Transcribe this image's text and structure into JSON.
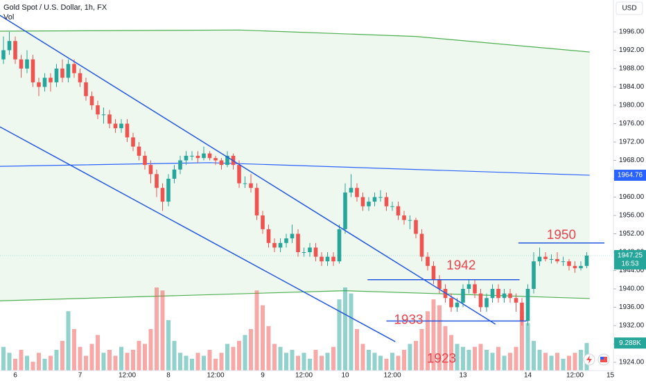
{
  "chart_data": {
    "type": "candlestick",
    "title": "Gold Spot / U.S. Dollar, 1h, FX",
    "volume_title": "Vol",
    "currency": "USD",
    "countdown": "16:53",
    "volume_tag": "9.288K",
    "colors": {
      "up": "#26a69a",
      "down": "#ef5350",
      "band": "#4caf50",
      "mid": "#2962ff",
      "trend": "#2157e0",
      "note": "#e8444d"
    },
    "categories": [
      null,
      null,
      "6",
      null,
      null,
      null,
      null,
      null,
      null,
      null,
      null,
      null,
      null,
      "7",
      null,
      null,
      null,
      null,
      null,
      null,
      null,
      "12:00",
      null,
      null,
      null,
      null,
      null,
      null,
      "8",
      null,
      null,
      null,
      null,
      null,
      null,
      null,
      "12:00",
      null,
      null,
      null,
      null,
      null,
      null,
      null,
      "9",
      null,
      null,
      null,
      null,
      null,
      null,
      "12:00",
      null,
      null,
      null,
      null,
      null,
      null,
      "10",
      null,
      null,
      null,
      null,
      null,
      null,
      null,
      "12:00",
      null,
      null,
      null,
      null,
      null,
      null,
      null,
      null,
      null,
      null,
      null,
      "13",
      null,
      null,
      null,
      null,
      null,
      null,
      null,
      null,
      null,
      null,
      "14",
      null,
      null,
      null,
      null,
      null,
      null,
      null,
      "12:00",
      null,
      null,
      null,
      null,
      null,
      "15"
    ],
    "ohlc": [
      [
        1990,
        1995,
        1989,
        1992
      ],
      [
        1992,
        1996,
        1991,
        1994
      ],
      [
        1994,
        1995,
        1989,
        1990
      ],
      [
        1990,
        1991,
        1986,
        1988
      ],
      [
        1988,
        1992,
        1987,
        1990
      ],
      [
        1990,
        1991,
        1984,
        1985
      ],
      [
        1985,
        1986,
        1982,
        1984
      ],
      [
        1984,
        1987,
        1983,
        1986
      ],
      [
        1986,
        1987,
        1983,
        1985
      ],
      [
        1985,
        1989,
        1984,
        1988
      ],
      [
        1988,
        1990,
        1985,
        1986
      ],
      [
        1986,
        1990,
        1985,
        1989
      ],
      [
        1989,
        1990,
        1986,
        1987
      ],
      [
        1987,
        1988,
        1984,
        1985
      ],
      [
        1985,
        1986,
        1981,
        1982
      ],
      [
        1982,
        1983,
        1979,
        1980
      ],
      [
        1980,
        1981,
        1977,
        1978
      ],
      [
        1978,
        1979.5,
        1976,
        1978
      ],
      [
        1978,
        1979,
        1975,
        1976
      ],
      [
        1976,
        1977,
        1974,
        1975
      ],
      [
        1975,
        1977,
        1974,
        1976
      ],
      [
        1976,
        1977,
        1972,
        1973
      ],
      [
        1973,
        1974,
        1970,
        1971
      ],
      [
        1971,
        1972,
        1968,
        1969
      ],
      [
        1969,
        1970,
        1966,
        1967
      ],
      [
        1967,
        1968,
        1963,
        1965
      ],
      [
        1965,
        1966,
        1960,
        1962
      ],
      [
        1962,
        1963,
        1957,
        1959
      ],
      [
        1959,
        1965,
        1958,
        1964
      ],
      [
        1964,
        1967,
        1963,
        1966
      ],
      [
        1966,
        1969,
        1965,
        1968
      ],
      [
        1968,
        1970,
        1967,
        1969
      ],
      [
        1969,
        1970,
        1968,
        1969
      ],
      [
        1969,
        1970,
        1967.5,
        1968.5
      ],
      [
        1968.5,
        1971,
        1968,
        1969.5
      ],
      [
        1969.5,
        1970,
        1968,
        1968.5
      ],
      [
        1968.5,
        1969,
        1967,
        1968
      ],
      [
        1968,
        1968.5,
        1966,
        1967
      ],
      [
        1967,
        1970,
        1966.5,
        1969
      ],
      [
        1969,
        1969.5,
        1966,
        1967
      ],
      [
        1967,
        1968,
        1962,
        1963
      ],
      [
        1963,
        1964.5,
        1962,
        1963
      ],
      [
        1963,
        1965,
        1961,
        1962
      ],
      [
        1962,
        1963,
        1955,
        1956
      ],
      [
        1956,
        1957,
        1952,
        1953
      ],
      [
        1953,
        1954,
        1949,
        1950
      ],
      [
        1950,
        1951,
        1948,
        1949
      ],
      [
        1949,
        1951,
        1948,
        1950
      ],
      [
        1950,
        1952,
        1949,
        1951
      ],
      [
        1951,
        1954,
        1950,
        1952
      ],
      [
        1952,
        1953,
        1947,
        1948
      ],
      [
        1948,
        1949,
        1947,
        1948
      ],
      [
        1948,
        1950,
        1947,
        1949
      ],
      [
        1949,
        1950,
        1946,
        1947
      ],
      [
        1947,
        1948,
        1945,
        1946
      ],
      [
        1946,
        1948,
        1945,
        1947
      ],
      [
        1947,
        1948,
        1945,
        1946
      ],
      [
        1946,
        1954,
        1945.5,
        1953
      ],
      [
        1953,
        1963,
        1952,
        1961
      ],
      [
        1961,
        1965,
        1960,
        1962
      ],
      [
        1962,
        1963,
        1959,
        1960
      ],
      [
        1960,
        1961,
        1957,
        1958
      ],
      [
        1958,
        1960,
        1957,
        1959
      ],
      [
        1959,
        1961,
        1958,
        1960
      ],
      [
        1960,
        1961.5,
        1959,
        1960
      ],
      [
        1960,
        1961,
        1957,
        1958
      ],
      [
        1958,
        1959,
        1957,
        1958
      ],
      [
        1958,
        1959,
        1955,
        1956
      ],
      [
        1956,
        1957,
        1954,
        1955
      ],
      [
        1955,
        1956,
        1953,
        1955
      ],
      [
        1955,
        1955.5,
        1951,
        1952
      ],
      [
        1952,
        1953,
        1946,
        1947
      ],
      [
        1947,
        1948,
        1944,
        1945
      ],
      [
        1945,
        1946,
        1941,
        1942
      ],
      [
        1942,
        1943,
        1939,
        1940
      ],
      [
        1940,
        1941,
        1937,
        1938
      ],
      [
        1938,
        1939,
        1935,
        1936
      ],
      [
        1936,
        1938,
        1935,
        1937
      ],
      [
        1937,
        1941,
        1936,
        1940
      ],
      [
        1940,
        1942,
        1939,
        1941
      ],
      [
        1941,
        1942,
        1938,
        1939
      ],
      [
        1939,
        1940,
        1935,
        1936
      ],
      [
        1936,
        1939,
        1935,
        1938
      ],
      [
        1938,
        1941,
        1937,
        1940
      ],
      [
        1940,
        1941,
        1937,
        1938
      ],
      [
        1938,
        1940,
        1937,
        1939
      ],
      [
        1939,
        1940,
        1937,
        1938
      ],
      [
        1938,
        1939,
        1935,
        1937
      ],
      [
        1937,
        1938,
        1932,
        1933
      ],
      [
        1933,
        1941,
        1932,
        1940
      ],
      [
        1940,
        1948,
        1939,
        1946
      ],
      [
        1946,
        1949,
        1945,
        1947
      ],
      [
        1947,
        1948,
        1946,
        1946.5
      ],
      [
        1946.5,
        1947.5,
        1945.5,
        1946.5
      ],
      [
        1946.5,
        1948,
        1945.5,
        1946
      ],
      [
        1946,
        1947,
        1945,
        1946
      ],
      [
        1946,
        1946.5,
        1944,
        1945
      ],
      [
        1945,
        1946,
        1943.5,
        1944.5
      ],
      [
        1944.5,
        1946,
        1944,
        1945
      ],
      [
        1945,
        1948,
        1944.5,
        1947.25
      ],
      null,
      null,
      null,
      null
    ],
    "volumes": [
      8,
      6,
      4,
      7,
      5,
      3,
      6,
      4,
      5,
      7,
      10,
      20,
      14,
      8,
      5,
      9,
      12,
      6,
      7,
      5,
      8,
      6,
      7,
      10,
      9,
      14,
      28,
      27,
      17,
      10,
      6,
      5,
      4,
      6,
      5,
      7,
      4,
      6,
      9,
      8,
      10,
      12,
      14,
      27,
      22,
      15,
      9,
      8,
      6,
      7,
      5,
      6,
      4,
      7,
      5,
      6,
      8,
      24,
      28,
      26,
      14,
      9,
      7,
      6,
      5,
      4,
      6,
      5,
      7,
      9,
      10,
      14,
      20,
      24,
      22,
      15,
      12,
      9,
      8,
      7,
      8,
      9,
      7,
      6,
      8,
      5,
      6,
      8,
      20,
      16,
      10,
      7,
      6,
      5,
      6,
      4,
      5,
      6,
      7,
      9.288,
      null,
      null,
      null,
      null
    ],
    "vlim": [
      0,
      28
    ],
    "ylim": [
      1922.19,
      2002.94
    ],
    "yticks": [
      {
        "value": 1924,
        "label": "1924.00"
      },
      {
        "value": 1928,
        "label": "1928.00"
      },
      {
        "value": 1932,
        "label": "1932.00"
      },
      {
        "value": 1936,
        "label": "1936.00"
      },
      {
        "value": 1940,
        "label": "1940.00"
      },
      {
        "value": 1944,
        "label": "1944.00"
      },
      {
        "value": 1948,
        "label": "1948.00"
      },
      {
        "value": 1952,
        "label": "1952.00"
      },
      {
        "value": 1956,
        "label": "1956.00"
      },
      {
        "value": 1960,
        "label": "1960.00"
      },
      {
        "value": 1964,
        "label": "1964.00"
      },
      {
        "value": 1968,
        "label": "1968.00"
      },
      {
        "value": 1972,
        "label": "1972.00"
      },
      {
        "value": 1976,
        "label": "1976.00"
      },
      {
        "value": 1980,
        "label": "1980.00"
      },
      {
        "value": 1984,
        "label": "1984.00"
      },
      {
        "value": 1988,
        "label": "1988.00"
      },
      {
        "value": 1992,
        "label": "1992.00"
      },
      {
        "value": 1996,
        "label": "1996.00"
      }
    ],
    "bands": [
      {
        "color": "#4caf50",
        "points": [
          [
            -0.6,
            1996.15
          ],
          [
            40,
            1996.4
          ],
          [
            70,
            1995
          ],
          [
            99.5,
            1991.6
          ]
        ]
      },
      {
        "color": "#2962ff",
        "points": [
          [
            -0.6,
            1966.7
          ],
          [
            35,
            1967.5
          ],
          [
            99.5,
            1964.76
          ]
        ]
      },
      {
        "color": "#4caf50",
        "points": [
          [
            -0.6,
            1937.4
          ],
          [
            58,
            1939.6
          ],
          [
            99.5,
            1937.9
          ]
        ]
      }
    ],
    "trendlines": [
      [
        [
          -0.6,
          1999.6
        ],
        [
          83.5,
          1932.3
        ]
      ],
      [
        [
          -0.6,
          1975.3
        ],
        [
          66.5,
          1928.5
        ]
      ]
    ],
    "levels": [
      {
        "value": 1950,
        "label": "1950",
        "from": 87.4,
        "to": 102
      },
      {
        "value": 1942,
        "label": "1942",
        "from": 61.8,
        "to": 87.6
      },
      {
        "value": 1933,
        "label": "1933",
        "from": 65,
        "to": 88.8
      },
      {
        "value": 1923,
        "label": "1923"
      }
    ]
  }
}
